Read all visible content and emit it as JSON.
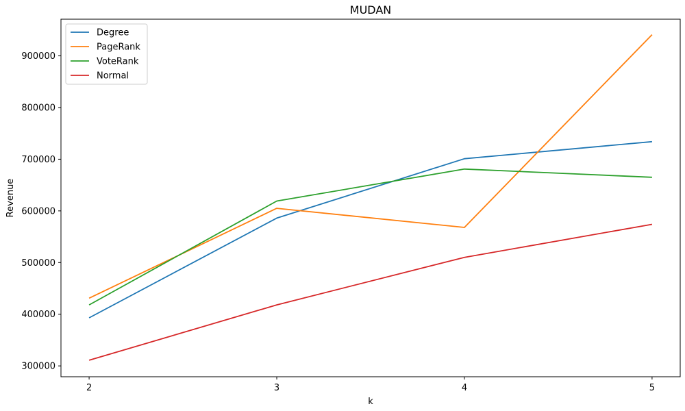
{
  "chart_data": {
    "type": "line",
    "title": "MUDAN",
    "xlabel": "k",
    "ylabel": "Revenue",
    "x": [
      2,
      3,
      4,
      5
    ],
    "xticks": [
      "2",
      "3",
      "4",
      "5"
    ],
    "yticks": [
      "300000",
      "400000",
      "500000",
      "600000",
      "700000",
      "800000",
      "900000"
    ],
    "xlim": [
      1.85,
      5.15
    ],
    "ylim": [
      279000,
      971000
    ],
    "legend_position": "top-left",
    "series": [
      {
        "name": "Degree",
        "color": "#1f77b4",
        "values": [
          393000,
          586000,
          701000,
          734000
        ]
      },
      {
        "name": "PageRank",
        "color": "#ff7f0e",
        "values": [
          431000,
          605000,
          568000,
          941000
        ]
      },
      {
        "name": "VoteRank",
        "color": "#2ca02c",
        "values": [
          418000,
          619000,
          681000,
          665000
        ]
      },
      {
        "name": "Normal",
        "color": "#d62728",
        "values": [
          311000,
          418000,
          510000,
          574000
        ]
      }
    ]
  }
}
